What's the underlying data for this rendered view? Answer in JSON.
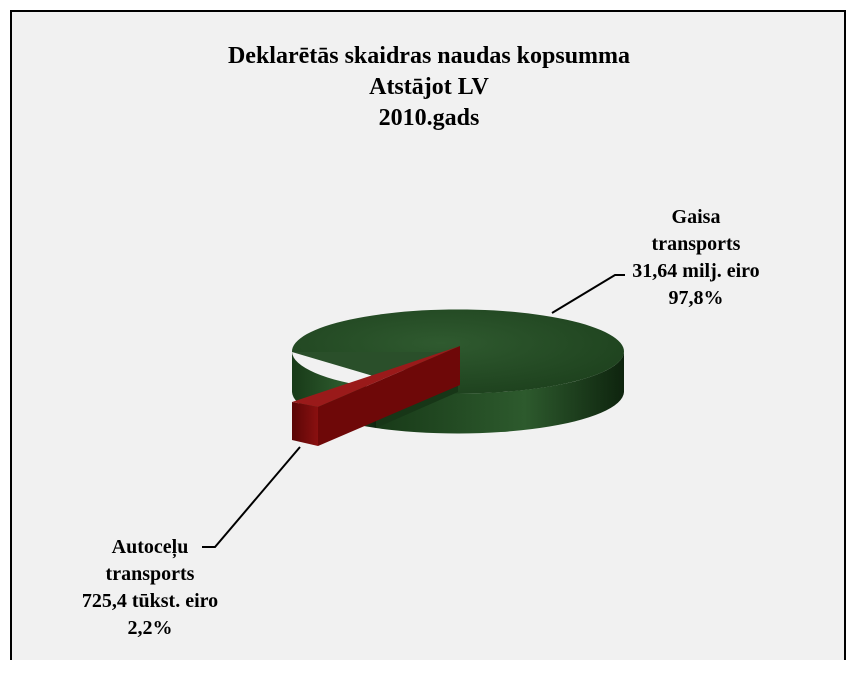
{
  "chart_data": {
    "type": "pie",
    "title_lines": [
      "Deklarētās skaidras naudas kopsumma",
      "Atstājot LV",
      "2010.gads"
    ],
    "slices": [
      {
        "label_lines": [
          "Gaisa",
          "transports",
          "31,64 milj. eiro",
          "97,8%"
        ],
        "value": 31.64,
        "unit": "milj. eiro",
        "percent": 97.8,
        "color": "#1f4b1f"
      },
      {
        "label_lines": [
          "Autoceļu",
          "transports",
          "725,4 tūkst. eiro",
          "2,2%"
        ],
        "value": 0.7254,
        "unit": "milj. eiro",
        "percent": 2.2,
        "color": "#7a0a0a"
      }
    ],
    "style": "3d-exploded",
    "legend": "none"
  }
}
